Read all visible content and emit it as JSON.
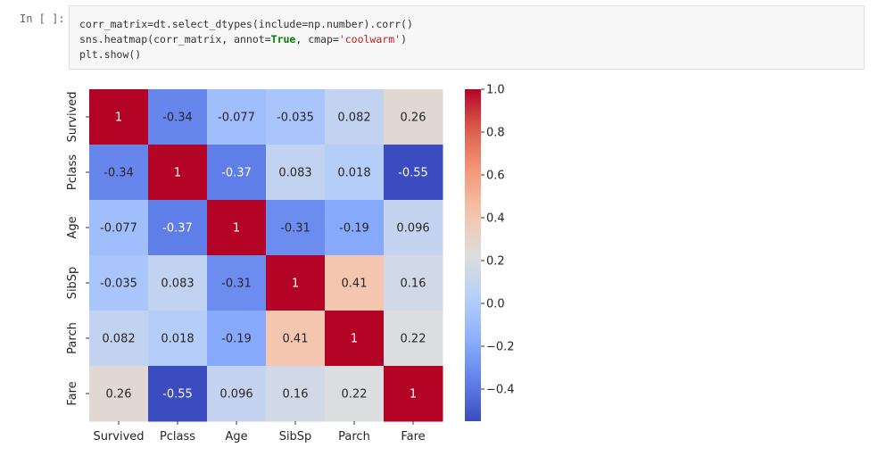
{
  "cell": {
    "prompt": "In [ ]:",
    "code": {
      "line1": "corr_matrix=dt.select_dtypes(include=np.number).corr()",
      "line2_pre": "sns.heatmap(corr_matrix, annot=",
      "line2_kw": "True",
      "line2_mid": ", cmap=",
      "line2_str": "'coolwarm'",
      "line2_post": ")",
      "line3": "plt.show()"
    }
  },
  "chart_data": {
    "type": "heatmap",
    "title": "",
    "xlabel": "",
    "ylabel": "",
    "colormap": "coolwarm",
    "x_categories": [
      "Survived",
      "Pclass",
      "Age",
      "SibSp",
      "Parch",
      "Fare"
    ],
    "y_categories": [
      "Survived",
      "Pclass",
      "Age",
      "SibSp",
      "Parch",
      "Fare"
    ],
    "values": [
      [
        1,
        -0.34,
        -0.077,
        -0.035,
        0.082,
        0.26
      ],
      [
        -0.34,
        1,
        -0.37,
        0.083,
        0.018,
        -0.55
      ],
      [
        -0.077,
        -0.37,
        1,
        -0.31,
        -0.19,
        0.096
      ],
      [
        -0.035,
        0.083,
        -0.31,
        1,
        0.41,
        0.16
      ],
      [
        0.082,
        0.018,
        -0.19,
        0.41,
        1,
        0.22
      ],
      [
        0.26,
        -0.55,
        0.096,
        0.16,
        0.22,
        1
      ]
    ],
    "labels": [
      [
        "1",
        "-0.34",
        "-0.077",
        "-0.035",
        "0.082",
        "0.26"
      ],
      [
        "-0.34",
        "1",
        "-0.37",
        "0.083",
        "0.018",
        "-0.55"
      ],
      [
        "-0.077",
        "-0.37",
        "1",
        "-0.31",
        "-0.19",
        "0.096"
      ],
      [
        "-0.035",
        "0.083",
        "-0.31",
        "1",
        "0.41",
        "0.16"
      ],
      [
        "0.082",
        "0.018",
        "-0.19",
        "0.41",
        "1",
        "0.22"
      ],
      [
        "0.26",
        "-0.55",
        "0.096",
        "0.16",
        "0.22",
        "1"
      ]
    ],
    "colorbar": {
      "vmin": -0.55,
      "vmax": 1.0,
      "ticks": [
        1.0,
        0.8,
        0.6,
        0.4,
        0.2,
        0.0,
        -0.2,
        -0.4
      ],
      "tick_labels": [
        "1.0",
        "0.8",
        "0.6",
        "0.4",
        "0.2",
        "0.0",
        "−0.2",
        "−0.4"
      ]
    },
    "grid": false,
    "legend": "colorbar-right"
  }
}
